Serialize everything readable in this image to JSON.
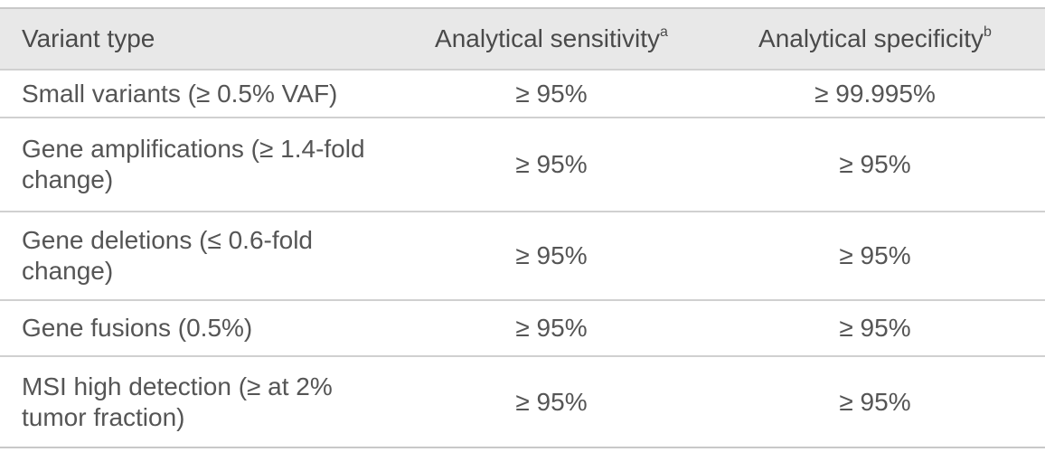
{
  "table": {
    "header": [
      {
        "text": "Variant type"
      },
      {
        "text": "Analytical sensitivity",
        "sup": "a"
      },
      {
        "text": "Analytical specificity",
        "sup": "b"
      }
    ],
    "rows": [
      [
        "Small variants (≥ 0.5% VAF)",
        "≥ 95%",
        "≥ 99.995%"
      ],
      [
        "Gene amplifications (≥ 1.4-fold change)",
        "≥ 95%",
        "≥ 95%"
      ],
      [
        "Gene deletions (≤ 0.6-fold change)",
        "≥ 95%",
        "≥ 95%"
      ],
      [
        "Gene fusions (0.5%)",
        "≥ 95%",
        "≥ 95%"
      ],
      [
        "MSI high detection (≥ at 2% tumor fraction)",
        "≥ 95%",
        "≥ 95%"
      ]
    ]
  }
}
